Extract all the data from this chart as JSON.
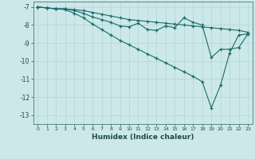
{
  "xlabel": "Humidex (Indice chaleur)",
  "background_color": "#cce8e8",
  "grid_color": "#b8d8d8",
  "line_color": "#1a6b6b",
  "x": [
    0,
    1,
    2,
    3,
    4,
    5,
    6,
    7,
    8,
    9,
    10,
    11,
    12,
    13,
    14,
    15,
    16,
    17,
    18,
    19,
    20,
    21,
    22,
    23
  ],
  "line1": [
    -7.0,
    -7.05,
    -7.1,
    -7.1,
    -7.15,
    -7.2,
    -7.3,
    -7.4,
    -7.5,
    -7.6,
    -7.7,
    -7.75,
    -7.8,
    -7.85,
    -7.9,
    -7.95,
    -8.0,
    -8.05,
    -8.1,
    -8.15,
    -8.2,
    -8.25,
    -8.3,
    -8.4
  ],
  "line2": [
    -7.0,
    -7.05,
    -7.1,
    -7.1,
    -7.2,
    -7.35,
    -7.55,
    -7.7,
    -7.85,
    -8.05,
    -8.1,
    -7.9,
    -8.25,
    -8.3,
    -8.05,
    -8.15,
    -7.6,
    -7.85,
    -8.0,
    -9.8,
    -9.35,
    -9.35,
    -9.25,
    -8.5
  ],
  "line3": [
    -7.0,
    -7.05,
    -7.1,
    -7.15,
    -7.35,
    -7.6,
    -7.95,
    -8.25,
    -8.55,
    -8.85,
    -9.1,
    -9.35,
    -9.6,
    -9.85,
    -10.1,
    -10.35,
    -10.6,
    -10.85,
    -11.15,
    -12.6,
    -11.35,
    -9.55,
    -8.55,
    -8.5
  ],
  "xlim": [
    -0.5,
    23.5
  ],
  "ylim": [
    -13.5,
    -6.7
  ],
  "yticks": [
    -7,
    -8,
    -9,
    -10,
    -11,
    -12,
    -13
  ],
  "xticks": [
    0,
    1,
    2,
    3,
    4,
    5,
    6,
    7,
    8,
    9,
    10,
    11,
    12,
    13,
    14,
    15,
    16,
    17,
    18,
    19,
    20,
    21,
    22,
    23
  ]
}
